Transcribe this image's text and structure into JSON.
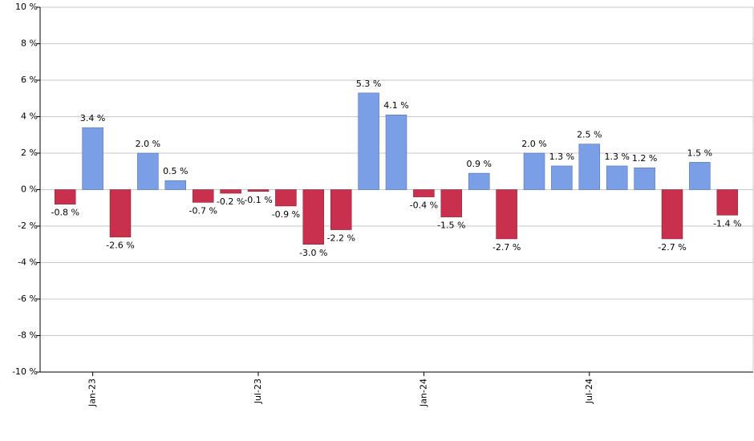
{
  "chart_data": {
    "type": "bar",
    "categories": [
      null,
      "Jan-23",
      null,
      null,
      null,
      null,
      null,
      "Jul-23",
      null,
      null,
      null,
      null,
      null,
      "Jan-24",
      null,
      null,
      null,
      null,
      null,
      "Jul-24",
      null,
      null,
      null,
      null,
      null
    ],
    "values": [
      -0.8,
      3.4,
      -2.6,
      2.0,
      0.5,
      -0.7,
      -0.2,
      -0.1,
      -0.9,
      -3.0,
      -2.2,
      5.3,
      4.1,
      -0.4,
      -1.5,
      0.9,
      -2.7,
      2.0,
      1.3,
      2.5,
      1.3,
      1.2,
      -2.7,
      1.5,
      -1.4
    ],
    "value_labels": [
      "-0.8 %",
      "3.4 %",
      "-2.6 %",
      "2.0 %",
      "0.5 %",
      "-0.7 %",
      "-0.2 %",
      "-0.1 %",
      "-0.9 %",
      "-3.0 %",
      "-2.2 %",
      "5.3 %",
      "4.1 %",
      "-0.4 %",
      "-1.5 %",
      "0.9 %",
      "-2.7 %",
      "2.0 %",
      "1.3 %",
      "2.5 %",
      "1.3 %",
      "1.2 %",
      "-2.7 %",
      "1.5 %",
      "-1.4 %"
    ],
    "positive_color": "#7b9fe6",
    "negative_color": "#c8304e",
    "ylim": [
      -10,
      10
    ],
    "yticks": [
      {
        "value": -10,
        "label": "-10 %"
      },
      {
        "value": -8,
        "label": "-8 %"
      },
      {
        "value": -6,
        "label": "-6 %"
      },
      {
        "value": -4,
        "label": "-4 %"
      },
      {
        "value": -2,
        "label": "-2 %"
      },
      {
        "value": 0,
        "label": "0 %"
      },
      {
        "value": 2,
        "label": "2 %"
      },
      {
        "value": 4,
        "label": "4 %"
      },
      {
        "value": 6,
        "label": "6 %"
      },
      {
        "value": 8,
        "label": "8 %"
      },
      {
        "value": 10,
        "label": "10 %"
      }
    ],
    "grid": true
  }
}
